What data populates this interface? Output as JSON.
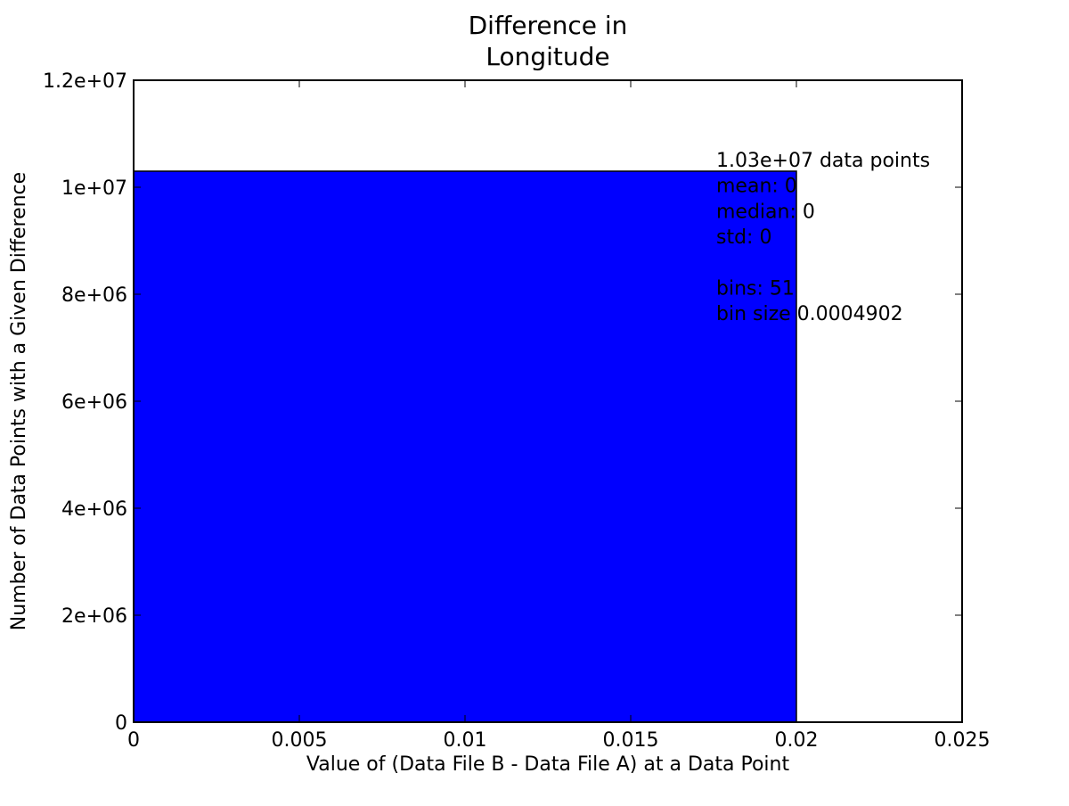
{
  "chart_data": {
    "type": "bar",
    "title_lines": [
      "Difference in",
      "Longitude"
    ],
    "xlabel": "Value of (Data File B - Data File A) at a Data Point",
    "ylabel": "Number of Data Points with a Given Difference",
    "xlim": [
      0,
      0.025
    ],
    "ylim": [
      0,
      12000000
    ],
    "x_ticks": [
      0,
      0.005,
      0.01,
      0.015,
      0.02,
      0.025
    ],
    "x_tick_labels": [
      "0",
      "0.005",
      "0.01",
      "0.015",
      "0.02",
      "0.025"
    ],
    "y_ticks": [
      0,
      2000000,
      4000000,
      6000000,
      8000000,
      10000000,
      12000000
    ],
    "y_tick_labels": [
      "0",
      "2e+06",
      "4e+06",
      "6e+06",
      "8e+06",
      "1e+07",
      "1.2e+07"
    ],
    "grid": false,
    "bars": [
      {
        "x0": 0,
        "x1": 0.02,
        "value": 10300000
      }
    ],
    "bar_color": "#0000ff",
    "annotation_lines": [
      "1.03e+07 data points",
      "mean: 0",
      "median: 0",
      "std: 0",
      "",
      "bins: 51",
      "bin size 0.0004902"
    ]
  }
}
